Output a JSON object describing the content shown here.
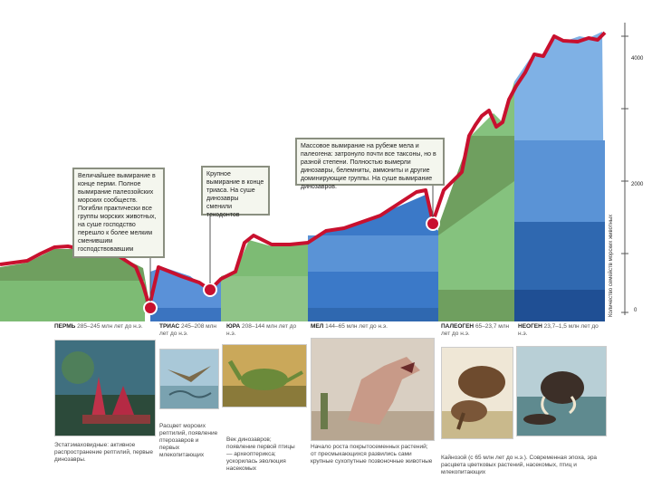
{
  "colors": {
    "line": "#c8102e",
    "perm": "#7dbb74",
    "trias": "#5a91d8",
    "jura": "#7dbb74",
    "mel": "#3b79c8",
    "paleogen": "#85c27e",
    "neogen": "#7fb1e5",
    "olive": "#6f9f5f"
  },
  "callouts": [
    "Величайшее вымирание в конце перми. Полное вымирание палеозойских морских сообществ. Погибли практически все группы морских животных, на суше господство перешло к более мелким сменившим господствовавшим",
    "Крупное вымирание в конце триаса. На суше динозавры сменили текодонтов",
    "Массовое вымирание на рубеже мела и палеогена: затронуло почти все таксоны, но в разной степени. Полностью вымерли динозавры, белемниты, аммониты и другие доминирующие группы. На суше вымирание динозавров."
  ],
  "periods": [
    {
      "name": "ПЕРМЬ",
      "dates": "285–245 млн лет до н.э."
    },
    {
      "name": "ТРИАС",
      "dates": "245–208 млн лет до н.э."
    },
    {
      "name": "ЮРА",
      "dates": "208–144 млн лет до н.э."
    },
    {
      "name": "МЕЛ",
      "dates": "144–65 млн лет до н.э."
    },
    {
      "name": "ПАЛЕОГЕН",
      "dates": "65–23,7 млн лет до н.э."
    },
    {
      "name": "НЕОГЕН",
      "dates": "23,7–1,5 млн лет до н.э."
    }
  ],
  "captions": [
    "Эстатэмаховидные: активное распространение рептилий, первые динозавры.",
    "Расцвет морских рептилий, появление птерозавров и первых млекопитающих",
    "Век динозавров; появление первой птицы — археоптерикса; ускорилась эволюция насекомых",
    "Начало роста покрытосеменных растений; от пресмыкающихся развились сами крупные сухопутные позвоночные животные",
    "Кайнозой (с 65 млн лет до н.э.). Современная эпоха, эра расцвета цветковых растений, насекомых, птиц и млекопитающих",
    ""
  ],
  "y_axis": {
    "label": "Количество семейств морских животных",
    "ticks": [
      "4000",
      "2000",
      "0"
    ]
  },
  "image_names": [
    "dimetrodon-illustration",
    "pterosaur-illustration",
    "dinosaur-illustration",
    "tyrannosaurus-illustration",
    "mammoth-illustration",
    "mammoth-swamp-illustration"
  ]
}
